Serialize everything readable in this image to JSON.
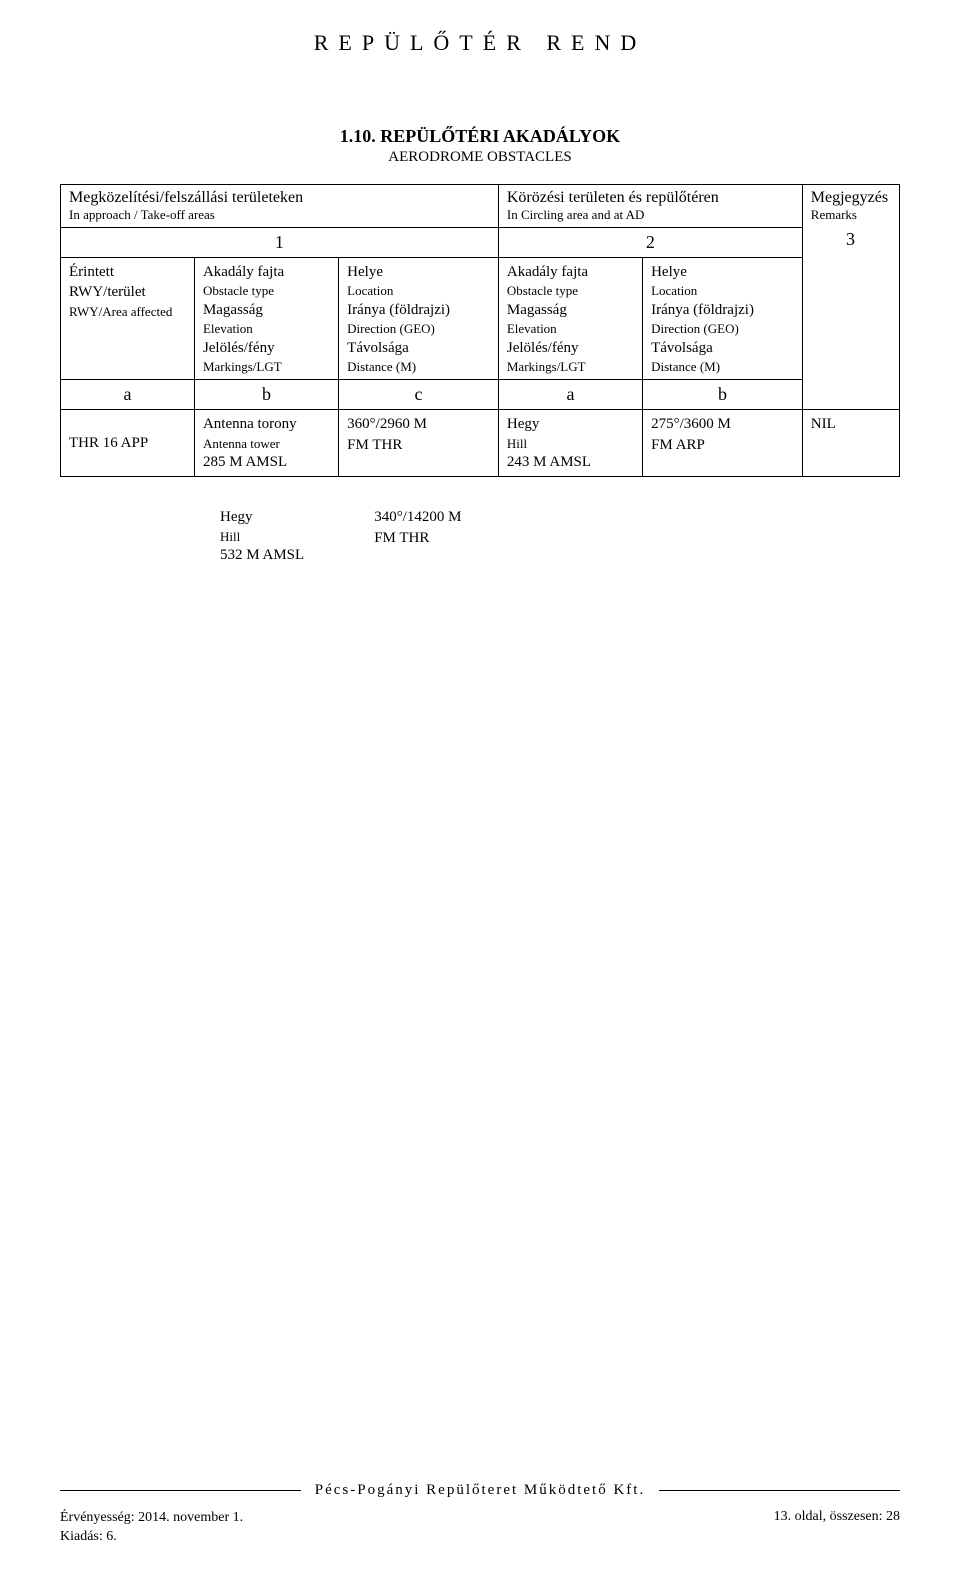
{
  "header": {
    "title": "REPÜLŐTÉR REND"
  },
  "section": {
    "number_title": "1.10. REPÜLŐTÉRI AKADÁLYOK",
    "subtitle": "AERODROME OBSTACLES"
  },
  "table": {
    "top_headers": {
      "left_main": "Megközelítési/felszállási területeken",
      "left_sub": "In approach / Take-off areas",
      "mid_main": "Körözési területen és repülőtéren",
      "mid_sub": "In Circling area and at AD",
      "right_main": "Megjegyzés",
      "right_sub": "Remarks"
    },
    "nums": {
      "n1": "1",
      "n2": "2",
      "n3": "3"
    },
    "col_a": {
      "l1": "Érintett",
      "l2": "RWY/terület",
      "l3": "RWY/Area affected"
    },
    "col_b": {
      "l1": "Akadály fajta",
      "l2": "Obstacle type",
      "l3": "Magasság",
      "l4": "Elevation",
      "l5": "Jelölés/fény",
      "l6": "Markings/LGT"
    },
    "col_c": {
      "l1": "Helye",
      "l2": "Location",
      "l3": "Iránya (földrajzi)",
      "l4": "Direction (GEO)",
      "l5": "Távolsága",
      "l6": "Distance (M)"
    },
    "col_d": {
      "l1": "Akadály fajta",
      "l2": "Obstacle type",
      "l3": "Magasság",
      "l4": "Elevation",
      "l5": "Jelölés/fény",
      "l6": "Markings/LGT"
    },
    "col_e": {
      "l1": "Helye",
      "l2": "Location",
      "l3": "Iránya (földrajzi)",
      "l4": "Direction (GEO)",
      "l5": "Távolsága",
      "l6": "Distance (M)"
    },
    "letters": {
      "a1": "a",
      "b1": "b",
      "c1": "c",
      "a2": "a",
      "b2": "b"
    },
    "row1": {
      "c1": "THR 16 APP",
      "c2_l1": "Antenna torony",
      "c2_l2": "Antenna tower",
      "c2_l3": "285 M AMSL",
      "c3_l1": "360°/2960 M",
      "c3_l2": "FM THR",
      "c4_l1": "Hegy",
      "c4_l2": "Hill",
      "c4_l3": "243 M AMSL",
      "c5_l1": "275°/3600 M",
      "c5_l2": "FM ARP",
      "c6": "NIL"
    }
  },
  "standalone": {
    "left_l1": "Hegy",
    "left_l2": "Hill",
    "left_l3": "532 M AMSL",
    "right_l1": "340°/14200 M",
    "right_l2": "FM THR"
  },
  "footer": {
    "company": "Pécs-Pogányi Repülőteret Működtető Kft.",
    "validity": "Érvényesség: 2014. november 1.",
    "edition": "Kiadás: 6.",
    "pagenum": "13. oldal, összesen: 28"
  }
}
